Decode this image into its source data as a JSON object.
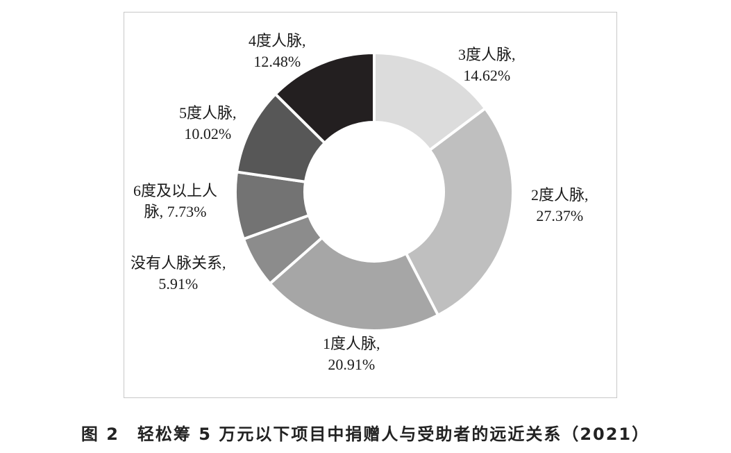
{
  "chart_data": {
    "type": "pie",
    "donut": true,
    "start_angle_deg": 0,
    "direction": "clockwise",
    "slices": [
      {
        "label_line1": "3度人脉,",
        "label_line2": "14.62%",
        "value": 14.62,
        "color": "#dcdcdc"
      },
      {
        "label_line1": "2度人脉,",
        "label_line2": "27.37%",
        "value": 27.37,
        "color": "#bfbfbf"
      },
      {
        "label_line1": "1度人脉,",
        "label_line2": "20.91%",
        "value": 20.91,
        "color": "#a6a6a6"
      },
      {
        "label_line1": "没有人脉关系,",
        "label_line2": "5.91%",
        "value": 5.91,
        "color": "#8c8c8c"
      },
      {
        "label_line1": "6度及以上人",
        "label_line2": "脉, 7.73%",
        "value": 7.73,
        "color": "#737373"
      },
      {
        "label_line1": "5度人脉,",
        "label_line2": "10.02%",
        "value": 10.02,
        "color": "#575757"
      },
      {
        "label_line1": "4度人脉,",
        "label_line2": "12.48%",
        "value": 12.48,
        "color": "#231f20"
      }
    ]
  },
  "caption": "图 2　轻松筹 5 万元以下项目中捐赠人与受助者的远近关系（2021）"
}
